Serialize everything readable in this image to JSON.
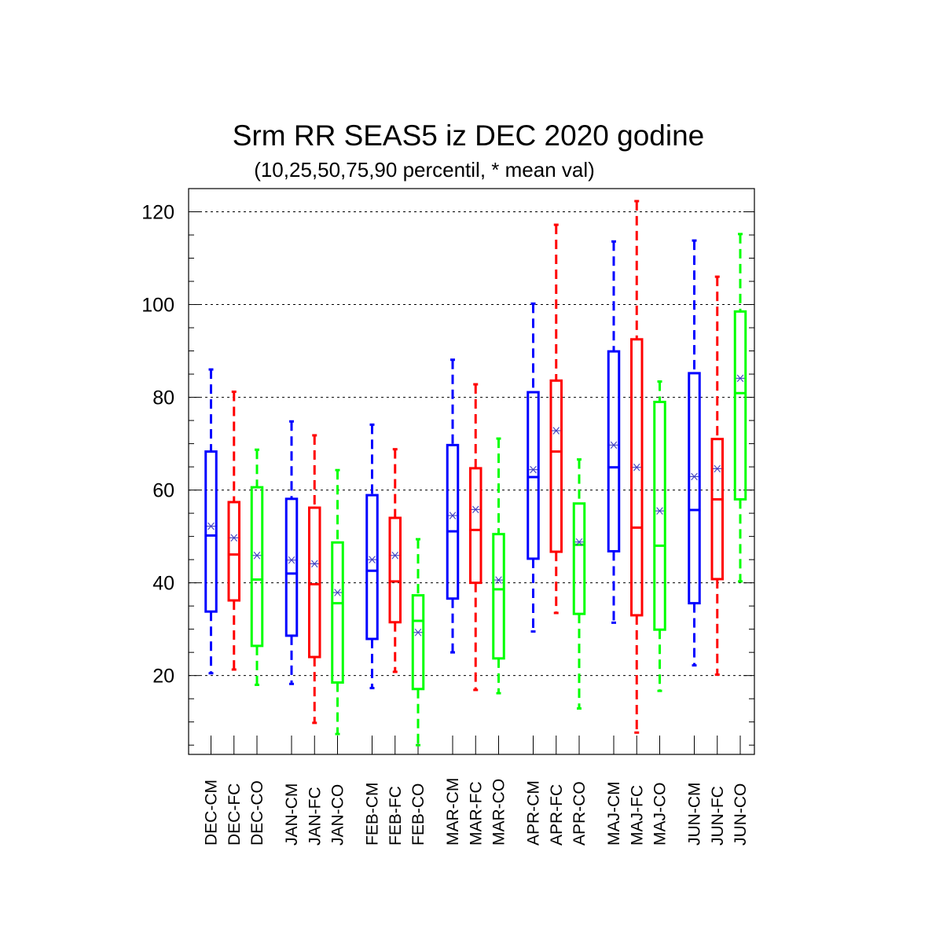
{
  "chart_data": {
    "type": "box",
    "title": "Srm RR SEAS5 iz DEC 2020 godine",
    "subtitle": "(10,25,50,75,90 percentil, * mean val)",
    "ylim": [
      3,
      125
    ],
    "yticks": [
      20,
      40,
      60,
      80,
      100,
      120
    ],
    "ytick_labels": [
      "20",
      "40",
      "60",
      "80",
      "100",
      "120"
    ],
    "grid": "horizontal-dashed",
    "colors": {
      "CM": "#0000ff",
      "FC": "#ff0000",
      "CO": "#00ff00",
      "mean": "#4040c0"
    },
    "groups": [
      {
        "categories": [
          "DEC-CM",
          "DEC-FC",
          "DEC-CO"
        ]
      },
      {
        "categories": [
          "JAN-CM",
          "JAN-FC",
          "JAN-CO"
        ]
      },
      {
        "categories": [
          "FEB-CM",
          "FEB-FC",
          "FEB-CO"
        ]
      },
      {
        "categories": [
          "MAR-CM",
          "MAR-FC",
          "MAR-CO"
        ]
      },
      {
        "categories": [
          "APR-CM",
          "APR-FC",
          "APR-CO"
        ]
      },
      {
        "categories": [
          "MAJ-CM",
          "MAJ-FC",
          "MAJ-CO"
        ]
      },
      {
        "categories": [
          "JUN-CM",
          "JUN-FC",
          "JUN-CO"
        ]
      }
    ],
    "boxes": [
      {
        "label": "DEC-CM",
        "kind": "CM",
        "p10": 20.5,
        "p25": 33.8,
        "p50": 50.2,
        "p75": 68.3,
        "p90": 86.0,
        "mean": 52.2
      },
      {
        "label": "DEC-FC",
        "kind": "FC",
        "p10": 21.3,
        "p25": 36.2,
        "p50": 46.1,
        "p75": 57.4,
        "p90": 81.2,
        "mean": 49.7
      },
      {
        "label": "DEC-CO",
        "kind": "CO",
        "p10": 18.0,
        "p25": 26.4,
        "p50": 40.7,
        "p75": 60.6,
        "p90": 68.7,
        "mean": 45.9
      },
      {
        "label": "JAN-CM",
        "kind": "CM",
        "p10": 18.2,
        "p25": 28.6,
        "p50": 42.0,
        "p75": 58.1,
        "p90": 74.8,
        "mean": 44.9
      },
      {
        "label": "JAN-FC",
        "kind": "FC",
        "p10": 9.8,
        "p25": 24.0,
        "p50": 39.7,
        "p75": 56.2,
        "p90": 71.8,
        "mean": 44.1
      },
      {
        "label": "JAN-CO",
        "kind": "CO",
        "p10": 7.4,
        "p25": 18.5,
        "p50": 35.6,
        "p75": 48.7,
        "p90": 64.3,
        "mean": 37.9
      },
      {
        "label": "FEB-CM",
        "kind": "CM",
        "p10": 17.3,
        "p25": 27.9,
        "p50": 42.6,
        "p75": 58.9,
        "p90": 74.1,
        "mean": 45.0
      },
      {
        "label": "FEB-FC",
        "kind": "FC",
        "p10": 20.8,
        "p25": 31.5,
        "p50": 40.3,
        "p75": 54.0,
        "p90": 68.8,
        "mean": 45.9
      },
      {
        "label": "FEB-CO",
        "kind": "CO",
        "p10": 5.0,
        "p25": 17.1,
        "p50": 31.8,
        "p75": 37.3,
        "p90": 49.4,
        "mean": 29.3
      },
      {
        "label": "MAR-CM",
        "kind": "CM",
        "p10": 25.0,
        "p25": 36.6,
        "p50": 51.1,
        "p75": 69.7,
        "p90": 88.1,
        "mean": 54.5
      },
      {
        "label": "MAR-FC",
        "kind": "FC",
        "p10": 16.9,
        "p25": 40.0,
        "p50": 51.4,
        "p75": 64.7,
        "p90": 82.8,
        "mean": 55.8
      },
      {
        "label": "MAR-CO",
        "kind": "CO",
        "p10": 16.2,
        "p25": 23.7,
        "p50": 38.6,
        "p75": 50.5,
        "p90": 71.1,
        "mean": 40.6
      },
      {
        "label": "APR-CM",
        "kind": "CM",
        "p10": 29.5,
        "p25": 45.2,
        "p50": 62.8,
        "p75": 81.1,
        "p90": 100.2,
        "mean": 64.4
      },
      {
        "label": "APR-FC",
        "kind": "FC",
        "p10": 33.5,
        "p25": 46.7,
        "p50": 68.3,
        "p75": 83.6,
        "p90": 117.2,
        "mean": 72.8
      },
      {
        "label": "APR-CO",
        "kind": "CO",
        "p10": 12.9,
        "p25": 33.3,
        "p50": 48.2,
        "p75": 57.1,
        "p90": 66.6,
        "mean": 48.8
      },
      {
        "label": "MAJ-CM",
        "kind": "CM",
        "p10": 31.4,
        "p25": 46.8,
        "p50": 64.9,
        "p75": 89.9,
        "p90": 113.6,
        "mean": 69.7
      },
      {
        "label": "MAJ-FC",
        "kind": "FC",
        "p10": 7.7,
        "p25": 33.0,
        "p50": 51.9,
        "p75": 92.5,
        "p90": 122.3,
        "mean": 64.9
      },
      {
        "label": "MAJ-CO",
        "kind": "CO",
        "p10": 16.7,
        "p25": 29.9,
        "p50": 48.0,
        "p75": 79.0,
        "p90": 83.4,
        "mean": 55.5
      },
      {
        "label": "JUN-CM",
        "kind": "CM",
        "p10": 22.2,
        "p25": 35.6,
        "p50": 55.7,
        "p75": 85.2,
        "p90": 113.8,
        "mean": 62.9
      },
      {
        "label": "JUN-FC",
        "kind": "FC",
        "p10": 20.2,
        "p25": 40.8,
        "p50": 58.0,
        "p75": 71.0,
        "p90": 106.0,
        "mean": 64.6
      },
      {
        "label": "JUN-CO",
        "kind": "CO",
        "p10": 40.3,
        "p25": 58.0,
        "p50": 80.9,
        "p75": 98.5,
        "p90": 115.2,
        "mean": 84.1
      }
    ]
  }
}
